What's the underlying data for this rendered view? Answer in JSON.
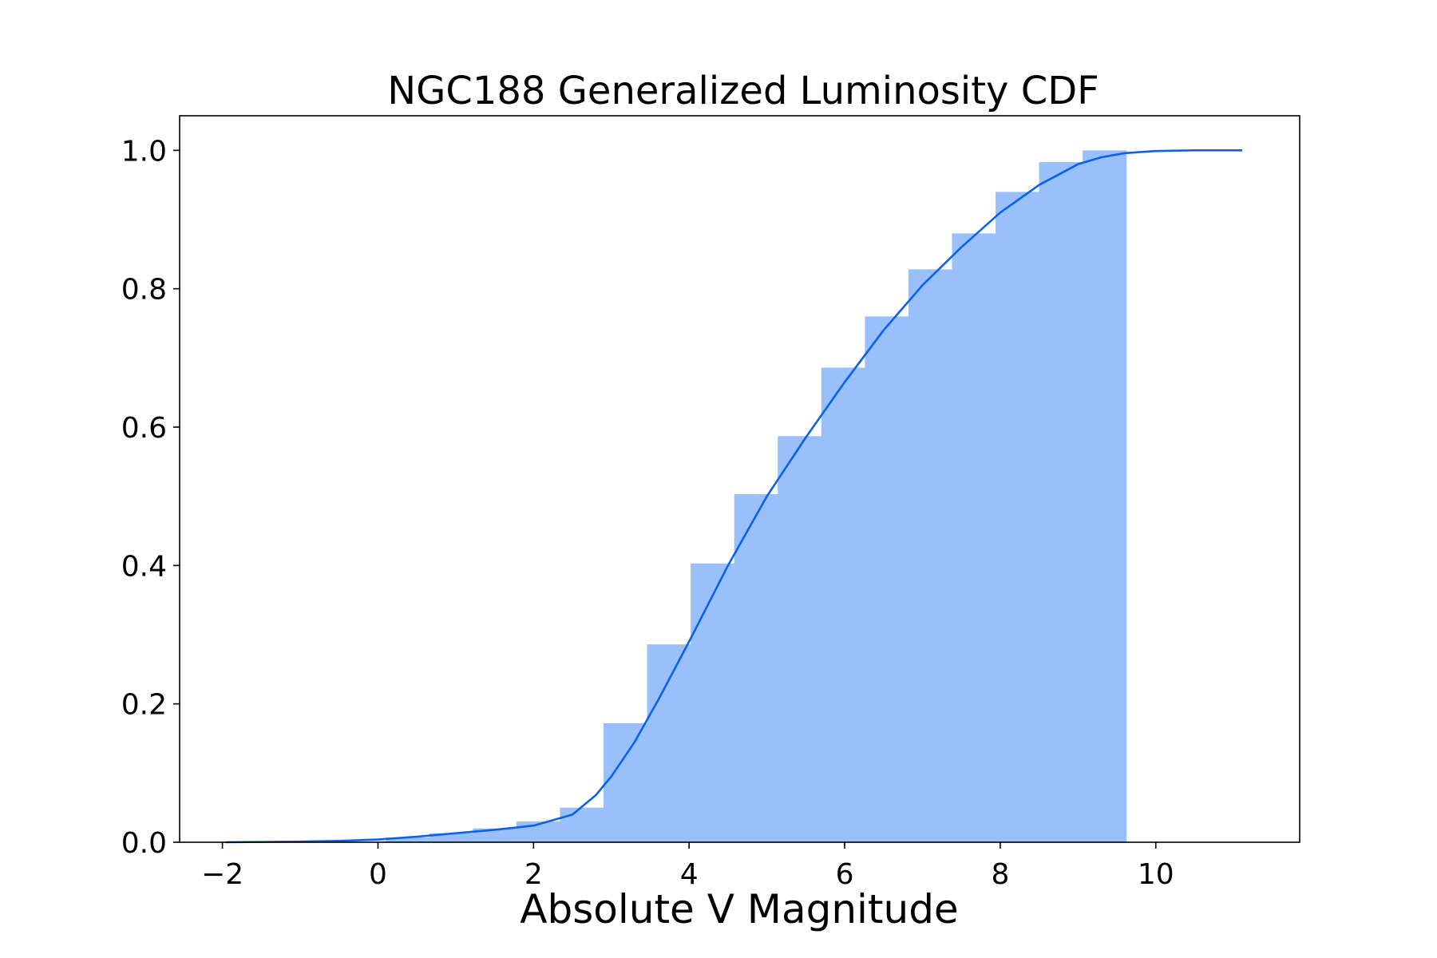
{
  "chart_data": {
    "type": "bar",
    "title": "NGC188 Generalized Luminosity CDF",
    "xlabel": "Absolute V Magnitude",
    "ylabel": "",
    "xlim": [
      -2.55,
      11.85
    ],
    "ylim": [
      0.0,
      1.05
    ],
    "xticks": [
      -2,
      0,
      2,
      4,
      6,
      8,
      10
    ],
    "xtick_labels": [
      "−2",
      "0",
      "2",
      "4",
      "6",
      "8",
      "10"
    ],
    "yticks": [
      0.0,
      0.2,
      0.4,
      0.6,
      0.8,
      1.0
    ],
    "ytick_labels": [
      "0.0",
      "0.2",
      "0.4",
      "0.6",
      "0.8",
      "1.0"
    ],
    "grid": false,
    "histogram": {
      "color": "#99c0fb",
      "bin_edges": [
        0.1,
        0.66,
        1.22,
        1.78,
        2.34,
        2.9,
        3.46,
        4.02,
        4.58,
        5.14,
        5.7,
        6.26,
        6.82,
        7.38,
        7.94,
        8.5,
        9.06,
        9.62
      ],
      "values": [
        0.007,
        0.013,
        0.02,
        0.03,
        0.05,
        0.172,
        0.286,
        0.403,
        0.503,
        0.587,
        0.686,
        0.76,
        0.828,
        0.88,
        0.94,
        0.983,
        1.0
      ]
    },
    "curve": {
      "color": "#0a62ea",
      "x": [
        -1.95,
        -1.0,
        -0.5,
        0.0,
        0.5,
        1.0,
        1.5,
        2.0,
        2.5,
        2.8,
        3.0,
        3.3,
        3.6,
        4.0,
        4.5,
        5.0,
        5.5,
        6.0,
        6.5,
        7.0,
        7.5,
        8.0,
        8.5,
        9.0,
        9.3,
        9.6,
        10.0,
        10.5,
        11.1
      ],
      "y": [
        0.0,
        0.001,
        0.002,
        0.004,
        0.008,
        0.013,
        0.018,
        0.024,
        0.04,
        0.068,
        0.095,
        0.145,
        0.205,
        0.29,
        0.4,
        0.5,
        0.585,
        0.665,
        0.74,
        0.805,
        0.86,
        0.91,
        0.95,
        0.98,
        0.99,
        0.996,
        0.999,
        1.0,
        1.0
      ]
    }
  }
}
